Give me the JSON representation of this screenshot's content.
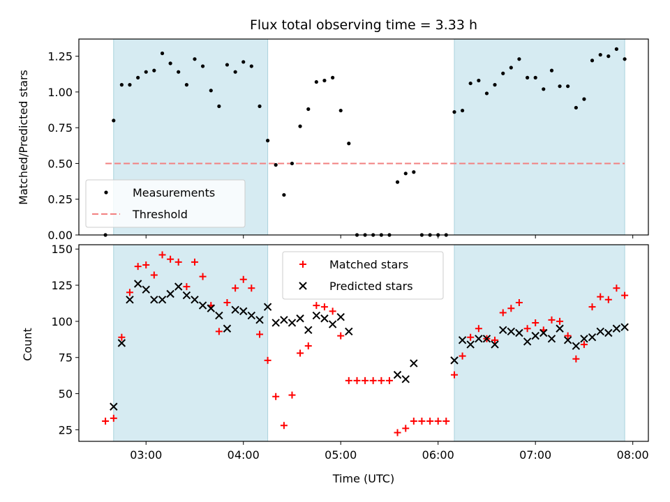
{
  "title": "Flux total observing time = 3.33 h",
  "chart_data": [
    {
      "type": "scatter",
      "ylabel": "Matched/Predicted stars",
      "ylim": [
        0,
        1.37
      ],
      "yticks": [
        0.0,
        0.25,
        0.5,
        0.75,
        1.0,
        1.25
      ],
      "xlim": [
        2.31,
        8.16
      ],
      "legend": {
        "placement": "lower-left",
        "entries": [
          "Measurements",
          "Threshold"
        ]
      },
      "shaded_intervals": [
        [
          2.667,
          4.25
        ],
        [
          6.167,
          7.917
        ]
      ],
      "threshold": {
        "name": "Threshold",
        "value": 0.5,
        "x_range": [
          2.583,
          7.917
        ],
        "color": "#f28080"
      },
      "series": [
        {
          "name": "Measurements",
          "color": "#000000",
          "points": [
            [
              2.583,
              0.0
            ],
            [
              2.667,
              0.8
            ],
            [
              2.75,
              1.05
            ],
            [
              2.833,
              1.05
            ],
            [
              2.917,
              1.1
            ],
            [
              3.0,
              1.14
            ],
            [
              3.083,
              1.15
            ],
            [
              3.167,
              1.27
            ],
            [
              3.25,
              1.2
            ],
            [
              3.333,
              1.14
            ],
            [
              3.417,
              1.05
            ],
            [
              3.5,
              1.23
            ],
            [
              3.583,
              1.18
            ],
            [
              3.667,
              1.01
            ],
            [
              3.75,
              0.9
            ],
            [
              3.833,
              1.19
            ],
            [
              3.917,
              1.14
            ],
            [
              4.0,
              1.21
            ],
            [
              4.083,
              1.18
            ],
            [
              4.167,
              0.9
            ],
            [
              4.25,
              0.66
            ],
            [
              4.333,
              0.49
            ],
            [
              4.417,
              0.28
            ],
            [
              4.5,
              0.5
            ],
            [
              4.583,
              0.76
            ],
            [
              4.667,
              0.88
            ],
            [
              4.75,
              1.07
            ],
            [
              4.833,
              1.08
            ],
            [
              4.917,
              1.1
            ],
            [
              5.0,
              0.87
            ],
            [
              5.083,
              0.64
            ],
            [
              5.167,
              0.0
            ],
            [
              5.25,
              0.0
            ],
            [
              5.333,
              0.0
            ],
            [
              5.417,
              0.0
            ],
            [
              5.5,
              0.0
            ],
            [
              5.583,
              0.37
            ],
            [
              5.667,
              0.43
            ],
            [
              5.75,
              0.44
            ],
            [
              5.833,
              0.0
            ],
            [
              5.917,
              0.0
            ],
            [
              6.0,
              0.0
            ],
            [
              6.083,
              0.0
            ],
            [
              6.167,
              0.86
            ],
            [
              6.25,
              0.87
            ],
            [
              6.333,
              1.06
            ],
            [
              6.417,
              1.08
            ],
            [
              6.5,
              0.99
            ],
            [
              6.583,
              1.05
            ],
            [
              6.667,
              1.13
            ],
            [
              6.75,
              1.17
            ],
            [
              6.833,
              1.23
            ],
            [
              6.917,
              1.1
            ],
            [
              7.0,
              1.1
            ],
            [
              7.083,
              1.02
            ],
            [
              7.167,
              1.15
            ],
            [
              7.25,
              1.04
            ],
            [
              7.333,
              1.04
            ],
            [
              7.417,
              0.89
            ],
            [
              7.5,
              0.95
            ],
            [
              7.583,
              1.22
            ],
            [
              7.667,
              1.26
            ],
            [
              7.75,
              1.25
            ],
            [
              7.833,
              1.3
            ],
            [
              7.917,
              1.23
            ]
          ]
        }
      ]
    },
    {
      "type": "scatter",
      "ylabel": "Count",
      "xlabel": "Time (UTC)",
      "ylim": [
        17,
        153
      ],
      "yticks": [
        25,
        50,
        75,
        100,
        125,
        150
      ],
      "xlim": [
        2.31,
        8.16
      ],
      "xticks": [
        3,
        4,
        5,
        6,
        7,
        8
      ],
      "xticklabels": [
        "03:00",
        "04:00",
        "05:00",
        "06:00",
        "07:00",
        "08:00"
      ],
      "legend": {
        "placement": "top-center",
        "entries": [
          "Matched stars",
          "Predicted stars"
        ]
      },
      "shaded_intervals": [
        [
          2.667,
          4.25
        ],
        [
          6.167,
          7.917
        ]
      ],
      "series": [
        {
          "name": "Matched stars",
          "marker": "plus",
          "color": "#ff0000",
          "points": [
            [
              2.583,
              31
            ],
            [
              2.667,
              33
            ],
            [
              2.75,
              89
            ],
            [
              2.833,
              120
            ],
            [
              2.917,
              138
            ],
            [
              3.0,
              139
            ],
            [
              3.083,
              132
            ],
            [
              3.167,
              146
            ],
            [
              3.25,
              143
            ],
            [
              3.333,
              141
            ],
            [
              3.417,
              124
            ],
            [
              3.5,
              141
            ],
            [
              3.583,
              131
            ],
            [
              3.667,
              111
            ],
            [
              3.75,
              93
            ],
            [
              3.833,
              113
            ],
            [
              3.917,
              123
            ],
            [
              4.0,
              129
            ],
            [
              4.083,
              123
            ],
            [
              4.167,
              91
            ],
            [
              4.25,
              73
            ],
            [
              4.333,
              48
            ],
            [
              4.417,
              28
            ],
            [
              4.5,
              49
            ],
            [
              4.583,
              78
            ],
            [
              4.667,
              83
            ],
            [
              4.75,
              111
            ],
            [
              4.833,
              110
            ],
            [
              4.917,
              107
            ],
            [
              5.0,
              90
            ],
            [
              5.083,
              59
            ],
            [
              5.167,
              59
            ],
            [
              5.25,
              59
            ],
            [
              5.333,
              59
            ],
            [
              5.417,
              59
            ],
            [
              5.5,
              59
            ],
            [
              5.583,
              23
            ],
            [
              5.667,
              26
            ],
            [
              5.75,
              31
            ],
            [
              5.833,
              31
            ],
            [
              5.917,
              31
            ],
            [
              6.0,
              31
            ],
            [
              6.083,
              31
            ],
            [
              6.167,
              63
            ],
            [
              6.25,
              76
            ],
            [
              6.333,
              89
            ],
            [
              6.417,
              95
            ],
            [
              6.5,
              88
            ],
            [
              6.583,
              87
            ],
            [
              6.667,
              106
            ],
            [
              6.75,
              109
            ],
            [
              6.833,
              113
            ],
            [
              6.917,
              95
            ],
            [
              7.0,
              99
            ],
            [
              7.083,
              94
            ],
            [
              7.167,
              101
            ],
            [
              7.25,
              100
            ],
            [
              7.333,
              90
            ],
            [
              7.417,
              74
            ],
            [
              7.5,
              84
            ],
            [
              7.583,
              110
            ],
            [
              7.667,
              117
            ],
            [
              7.75,
              115
            ],
            [
              7.833,
              123
            ],
            [
              7.917,
              118
            ]
          ]
        },
        {
          "name": "Predicted stars",
          "marker": "x",
          "color": "#000000",
          "points": [
            [
              2.667,
              41
            ],
            [
              2.75,
              85
            ],
            [
              2.833,
              115
            ],
            [
              2.917,
              126
            ],
            [
              3.0,
              122
            ],
            [
              3.083,
              115
            ],
            [
              3.167,
              115
            ],
            [
              3.25,
              119
            ],
            [
              3.333,
              124
            ],
            [
              3.417,
              118
            ],
            [
              3.5,
              115
            ],
            [
              3.583,
              111
            ],
            [
              3.667,
              109
            ],
            [
              3.75,
              104
            ],
            [
              3.833,
              95
            ],
            [
              3.917,
              108
            ],
            [
              4.0,
              107
            ],
            [
              4.083,
              104
            ],
            [
              4.167,
              101
            ],
            [
              4.25,
              110
            ],
            [
              4.333,
              99
            ],
            [
              4.417,
              101
            ],
            [
              4.5,
              99
            ],
            [
              4.583,
              102
            ],
            [
              4.667,
              94
            ],
            [
              4.75,
              104
            ],
            [
              4.833,
              102
            ],
            [
              4.917,
              98
            ],
            [
              5.0,
              103
            ],
            [
              5.083,
              93
            ],
            [
              5.583,
              63
            ],
            [
              5.667,
              60
            ],
            [
              5.75,
              71
            ],
            [
              6.167,
              73
            ],
            [
              6.25,
              87
            ],
            [
              6.333,
              84
            ],
            [
              6.417,
              88
            ],
            [
              6.5,
              88
            ],
            [
              6.583,
              84
            ],
            [
              6.667,
              94
            ],
            [
              6.75,
              93
            ],
            [
              6.833,
              92
            ],
            [
              6.917,
              86
            ],
            [
              7.0,
              90
            ],
            [
              7.083,
              92
            ],
            [
              7.167,
              88
            ],
            [
              7.25,
              95
            ],
            [
              7.333,
              87
            ],
            [
              7.417,
              83
            ],
            [
              7.5,
              88
            ],
            [
              7.583,
              89
            ],
            [
              7.667,
              93
            ],
            [
              7.75,
              92
            ],
            [
              7.833,
              95
            ],
            [
              7.917,
              96
            ]
          ]
        }
      ]
    }
  ]
}
